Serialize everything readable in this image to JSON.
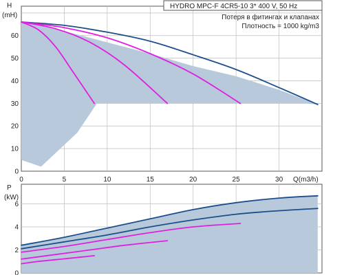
{
  "chart_data": [
    {
      "type": "line",
      "title": "HYDRO MPC-F 4CR5-10    3* 400 V, 50 Hz",
      "notes": [
        "Потеря в фитингах и клапанах",
        "Плотность = 1000 kg/m3"
      ],
      "ylabel_lines": [
        "H",
        "(mH)"
      ],
      "xlabel": "Q(m3/h)",
      "xlim": [
        0,
        35
      ],
      "ylim": [
        0,
        73
      ],
      "xticks": [
        "0",
        "5",
        "10",
        "15",
        "20",
        "25",
        "30"
      ],
      "yticks": [
        "0",
        "10",
        "20",
        "30",
        "40",
        "50",
        "60"
      ],
      "grid": true,
      "colors": {
        "envelope": "#b7c9db",
        "max_curve": "#1c4f8a",
        "pump_curves": "#e020e0",
        "grid": "#bdbdbd"
      },
      "envelope": [
        [
          0,
          66.5
        ],
        [
          5,
          62
        ],
        [
          10,
          57
        ],
        [
          15,
          52
        ],
        [
          20,
          46.5
        ],
        [
          25,
          42
        ],
        [
          30,
          36
        ],
        [
          33.5,
          31
        ],
        [
          34.5,
          29.5
        ],
        [
          33,
          30
        ],
        [
          8.8,
          30
        ],
        [
          6.5,
          17
        ],
        [
          2.3,
          2
        ],
        [
          0,
          5
        ]
      ],
      "series": [
        {
          "id": "max-curve",
          "color": "#1c4f8a",
          "x": [
            0,
            5,
            10,
            15,
            20,
            25,
            30,
            34.5
          ],
          "y": [
            66,
            64.5,
            61.5,
            57.5,
            51.5,
            45,
            37,
            29.5
          ]
        },
        {
          "id": "pump-1",
          "color": "#e020e0",
          "x": [
            0,
            2,
            4,
            6,
            8.5
          ],
          "y": [
            66,
            62.5,
            55,
            44,
            30
          ]
        },
        {
          "id": "pump-2",
          "color": "#e020e0",
          "x": [
            0,
            4,
            8,
            12,
            17
          ],
          "y": [
            66,
            63,
            57,
            47,
            30
          ]
        },
        {
          "id": "pump-3",
          "color": "#e020e0",
          "x": [
            0,
            5,
            10,
            15,
            20,
            25.5
          ],
          "y": [
            66,
            63.5,
            59,
            52,
            43,
            30
          ]
        }
      ]
    },
    {
      "type": "line",
      "ylabel_lines": [
        "P",
        "(kW)"
      ],
      "xlim": [
        0,
        35
      ],
      "ylim": [
        0,
        7.7
      ],
      "yticks": [
        "0",
        "2",
        "4",
        "6"
      ],
      "grid": true,
      "colors": {
        "envelope": "#b7c9db",
        "max_curve": "#1c4f8a",
        "pump_curves": "#e020e0",
        "grid": "#bdbdbd"
      },
      "envelope": [
        [
          0,
          2.4
        ],
        [
          5,
          3.1
        ],
        [
          10,
          3.9
        ],
        [
          15,
          4.7
        ],
        [
          20,
          5.5
        ],
        [
          25,
          6.1
        ],
        [
          30,
          6.5
        ],
        [
          34,
          6.7
        ],
        [
          34.5,
          6.7
        ],
        [
          34.5,
          0
        ],
        [
          0,
          0
        ]
      ],
      "series": [
        {
          "id": "p-max-curve",
          "color": "#1c4f8a",
          "x": [
            0,
            5,
            10,
            15,
            20,
            25,
            30,
            34.5
          ],
          "y": [
            2.4,
            3.1,
            3.9,
            4.7,
            5.5,
            6.1,
            6.5,
            6.7
          ]
        },
        {
          "id": "p-curve-a",
          "color": "#1c4f8a",
          "x": [
            0,
            5,
            10,
            15,
            20,
            25,
            30,
            34.5
          ],
          "y": [
            2.1,
            2.7,
            3.3,
            4.0,
            4.6,
            5.1,
            5.4,
            5.6
          ]
        },
        {
          "id": "p-pump-3",
          "color": "#e020e0",
          "x": [
            0,
            5,
            10,
            15,
            20,
            25.5
          ],
          "y": [
            1.8,
            2.3,
            2.9,
            3.5,
            4.0,
            4.3
          ]
        },
        {
          "id": "p-pump-2",
          "color": "#e020e0",
          "x": [
            0,
            4,
            8,
            12,
            17
          ],
          "y": [
            1.2,
            1.6,
            2.0,
            2.4,
            2.8
          ]
        },
        {
          "id": "p-pump-1",
          "color": "#e020e0",
          "x": [
            0,
            2,
            4,
            6,
            8.5
          ],
          "y": [
            0.8,
            1.0,
            1.15,
            1.3,
            1.5
          ]
        }
      ]
    }
  ]
}
